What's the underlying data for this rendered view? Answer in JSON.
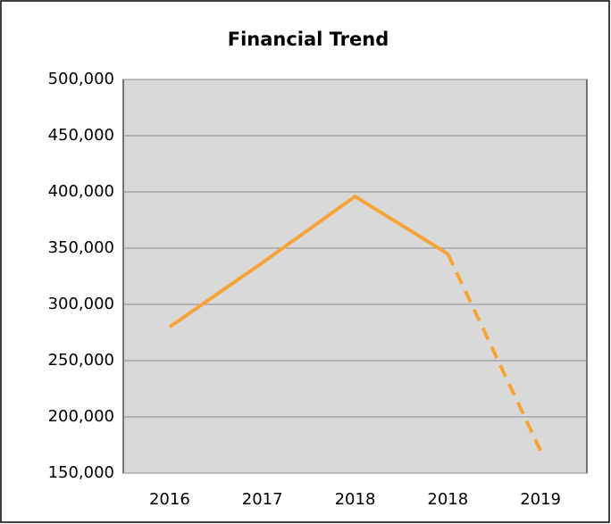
{
  "chart_data": {
    "type": "line",
    "title": "Financial Trend",
    "categories": [
      "2016",
      "2017",
      "2018",
      "2018",
      "2019"
    ],
    "values": [
      280000,
      337000,
      396000,
      345000,
      170000
    ],
    "color": "#f6a43a",
    "dashed_from": 3,
    "ylim": [
      150000,
      500000
    ],
    "yticks": [
      {
        "value": 150000,
        "label": "150,000"
      },
      {
        "value": 200000,
        "label": "200,000"
      },
      {
        "value": 250000,
        "label": "250,000"
      },
      {
        "value": 300000,
        "label": "300,000"
      },
      {
        "value": 350000,
        "label": "350,000"
      },
      {
        "value": 400000,
        "label": "400,000"
      },
      {
        "value": 450000,
        "label": "450,000"
      },
      {
        "value": 500000,
        "label": "500,000"
      }
    ],
    "grid": true
  }
}
